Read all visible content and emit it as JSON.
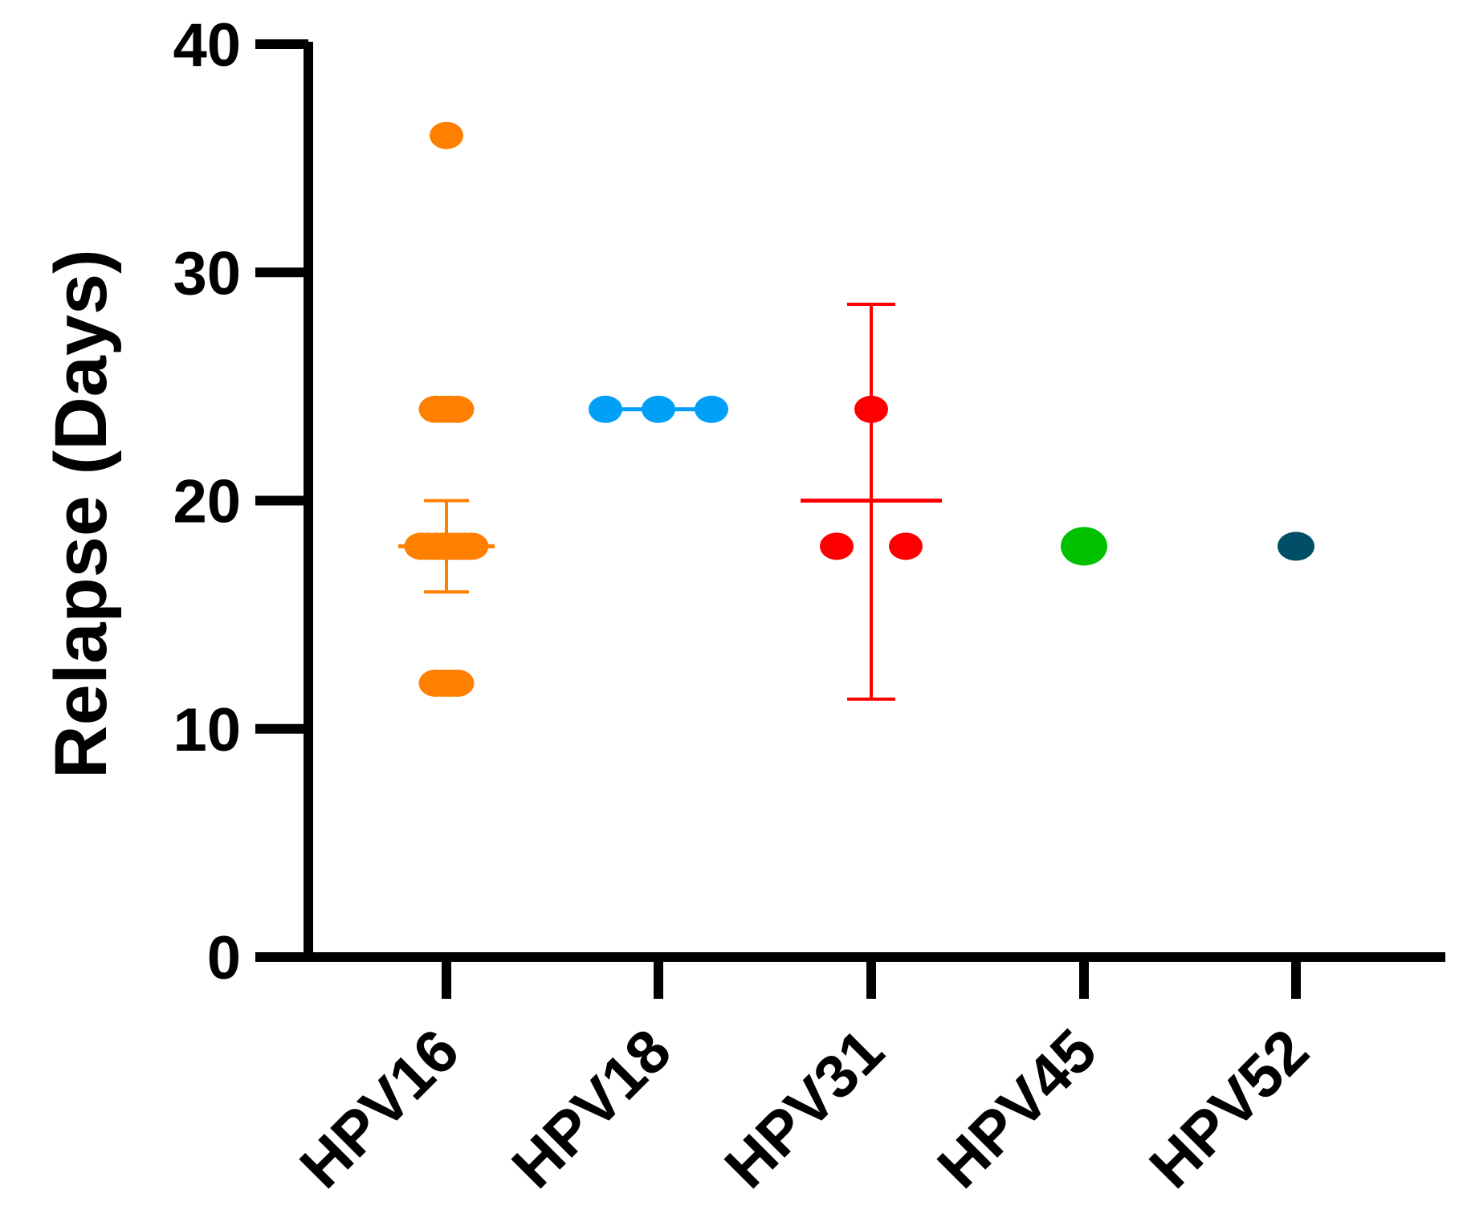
{
  "chart_data": {
    "type": "scatter",
    "ylabel": "Relapse (Days)",
    "xlabel": "",
    "title": "",
    "ylim": [
      0,
      40
    ],
    "yticks": [
      0,
      10,
      20,
      30,
      40
    ],
    "categories": [
      "HPV16",
      "HPV18",
      "HPV31",
      "HPV45",
      "HPV52"
    ],
    "grid": false,
    "legend": "none",
    "groups": [
      {
        "category": "HPV16",
        "color": "#FF8000",
        "points": [
          36,
          24,
          24,
          24,
          24,
          18,
          18,
          18,
          18,
          18,
          18,
          18,
          18,
          12,
          12,
          12,
          12
        ],
        "mean": 18,
        "error": [
          16,
          20
        ]
      },
      {
        "category": "HPV18",
        "color": "#00A0F8",
        "points": [
          24,
          24,
          24
        ],
        "mean": 24,
        "error": [
          24,
          24
        ]
      },
      {
        "category": "HPV31",
        "color": "#FF0000",
        "points": [
          24,
          18,
          18
        ],
        "mean": 20,
        "error": [
          11.3,
          28.6
        ]
      },
      {
        "category": "HPV45",
        "color": "#00C000",
        "points": [
          18
        ],
        "mean": null,
        "error": null
      },
      {
        "category": "HPV52",
        "color": "#004E66",
        "points": [
          18
        ],
        "mean": null,
        "error": null
      }
    ]
  }
}
